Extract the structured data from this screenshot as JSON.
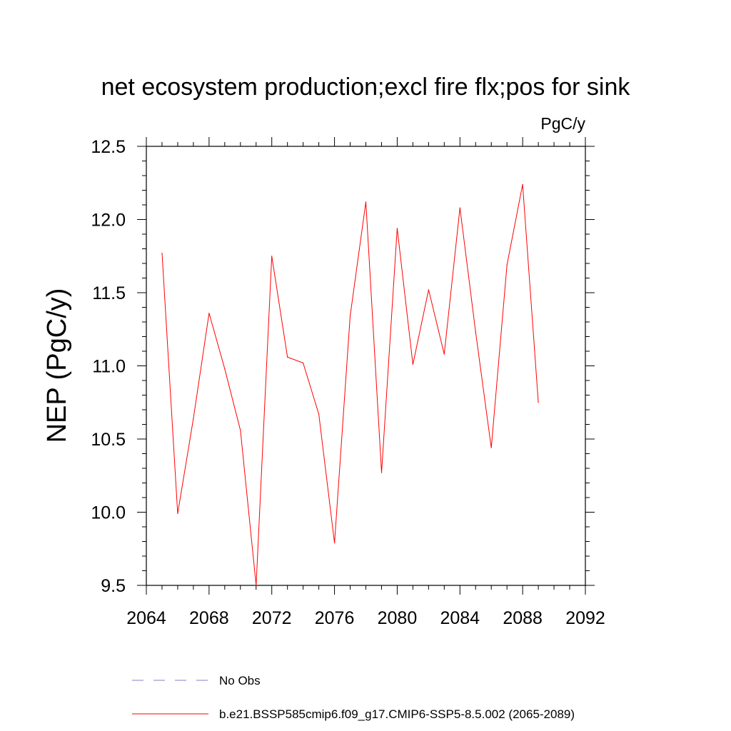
{
  "chart_data": {
    "type": "line",
    "title": "net ecosystem production;excl fire flx;pos for sink",
    "units_label": "PgC/y",
    "ylabel": "NEP  (PgC/y)",
    "xlabel": "",
    "xlim": [
      2064,
      2092
    ],
    "ylim": [
      9.5,
      12.5
    ],
    "x_ticks": [
      2064,
      2068,
      2072,
      2076,
      2080,
      2084,
      2088,
      2092
    ],
    "y_ticks": [
      9.5,
      10.0,
      10.5,
      11.0,
      11.5,
      12.0,
      12.5
    ],
    "x_tick_labels": [
      "2064",
      "2068",
      "2072",
      "2076",
      "2080",
      "2084",
      "2088",
      "2092"
    ],
    "y_tick_labels": [
      "9.5",
      "10.0",
      "10.5",
      "11.0",
      "11.5",
      "12.0",
      "12.5"
    ],
    "series": [
      {
        "name": "b.e21.BSSP585cmip6.f09_g17.CMIP6-SSP5-8.5.002 (2065-2089)",
        "color": "#ff0000",
        "x": [
          2065,
          2066,
          2067,
          2068,
          2069,
          2070,
          2071,
          2072,
          2073,
          2074,
          2075,
          2076,
          2077,
          2078,
          2079,
          2080,
          2081,
          2082,
          2083,
          2084,
          2085,
          2086,
          2087,
          2088,
          2089
        ],
        "values": [
          11.77,
          9.99,
          10.64,
          11.36,
          10.98,
          10.56,
          9.5,
          11.75,
          11.06,
          11.02,
          10.67,
          9.79,
          11.34,
          12.12,
          10.27,
          11.94,
          11.01,
          11.52,
          11.08,
          12.08,
          11.23,
          10.44,
          11.69,
          12.24,
          10.75
        ]
      }
    ],
    "legend": [
      {
        "label": "No Obs",
        "color": "#7f7fcc",
        "style": "dashed"
      },
      {
        "label": "b.e21.BSSP585cmip6.f09_g17.CMIP6-SSP5-8.5.002 (2065-2089)",
        "color": "#ff0000",
        "style": "solid"
      }
    ],
    "legend_position": "bottom",
    "grid": false
  }
}
